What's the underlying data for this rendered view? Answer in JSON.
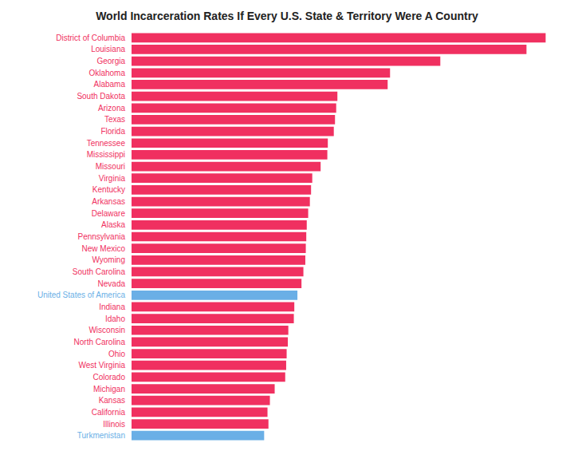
{
  "chart_data": {
    "type": "bar",
    "orientation": "horizontal",
    "title": "World Incarceration Rates If Every U.S. State & Territory Were A Country",
    "categories": [
      "District of Columbia",
      "Louisiana",
      "Georgia",
      "Oklahoma",
      "Alabama",
      "South Dakota",
      "Arizona",
      "Texas",
      "Florida",
      "Tennessee",
      "Mississippi",
      "Missouri",
      "Virginia",
      "Kentucky",
      "Arkansas",
      "Delaware",
      "Alaska",
      "Pennsylvania",
      "New Mexico",
      "Wyoming",
      "South Carolina",
      "Nevada",
      "United States of America",
      "Indiana",
      "Idaho",
      "Wisconsin",
      "North Carolina",
      "Ohio",
      "West Virginia",
      "Colorado",
      "Michigan",
      "Kansas",
      "California",
      "Illinois",
      "Turkmenistan"
    ],
    "values": [
      1730,
      1650,
      1290,
      1080,
      1070,
      860,
      855,
      850,
      845,
      820,
      818,
      790,
      755,
      750,
      745,
      738,
      732,
      730,
      728,
      726,
      718,
      710,
      693,
      680,
      678,
      655,
      653,
      648,
      646,
      642,
      598,
      578,
      568,
      572,
      554
    ],
    "colors": [
      "#F03060",
      "#F03060",
      "#F03060",
      "#F03060",
      "#F03060",
      "#F03060",
      "#F03060",
      "#F03060",
      "#F03060",
      "#F03060",
      "#F03060",
      "#F03060",
      "#F03060",
      "#F03060",
      "#F03060",
      "#F03060",
      "#F03060",
      "#F03060",
      "#F03060",
      "#F03060",
      "#F03060",
      "#F03060",
      "#6AAFE6",
      "#F03060",
      "#F03060",
      "#F03060",
      "#F03060",
      "#F03060",
      "#F03060",
      "#F03060",
      "#F03060",
      "#F03060",
      "#F03060",
      "#F03060",
      "#6AAFE6"
    ],
    "xlim": [
      0,
      1781.9
    ],
    "grid": false,
    "tick_labels": "y"
  }
}
